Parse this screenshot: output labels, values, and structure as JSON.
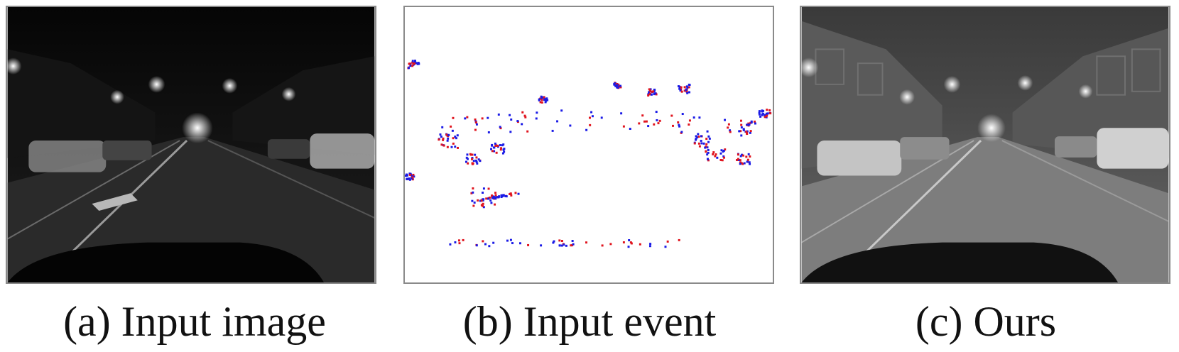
{
  "figure": {
    "panels": [
      {
        "caption": "(a) Input image",
        "content": "night-street-camera-frame"
      },
      {
        "caption": "(b) Input event",
        "content": "event-polarity-map"
      },
      {
        "caption": "(c) Ours",
        "content": "reconstructed-street-frame"
      }
    ]
  },
  "colors": {
    "positive_event": "#e0141e",
    "negative_event": "#1a1ae6",
    "frame_border": "#8a8a8a"
  }
}
